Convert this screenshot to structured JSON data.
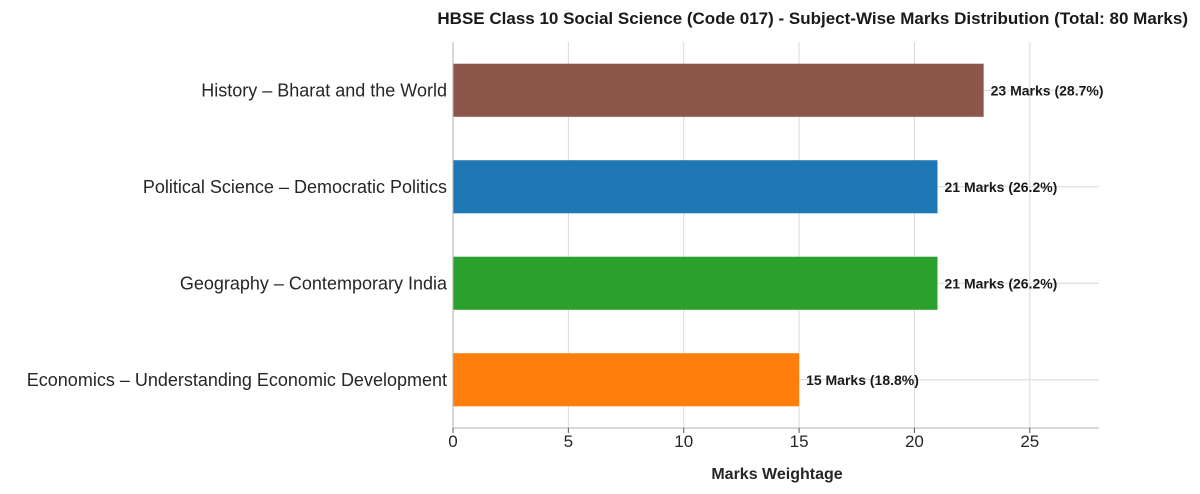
{
  "chart_data": {
    "type": "bar",
    "orientation": "horizontal",
    "title": "HBSE Class 10 Social Science (Code 017) - Subject-Wise Marks Distribution (Total: 80 Marks)",
    "xlabel": "Marks Weightage",
    "ylabel": "",
    "xlim": [
      0,
      28
    ],
    "xticks": [
      0,
      5,
      10,
      15,
      20,
      25
    ],
    "grid": true,
    "categories": [
      "History – Bharat and the World",
      "Political Science – Democratic Politics",
      "Geography – Contemporary India",
      "Economics – Understanding Economic Development"
    ],
    "values": [
      23,
      21,
      21,
      15
    ],
    "data_labels": [
      "23 Marks (28.7%)",
      "21 Marks (26.2%)",
      "21 Marks (26.2%)",
      "15 Marks (18.8%)"
    ],
    "colors": [
      "#8c564b",
      "#1f77b4",
      "#2ca02c",
      "#ff7f0e"
    ]
  }
}
